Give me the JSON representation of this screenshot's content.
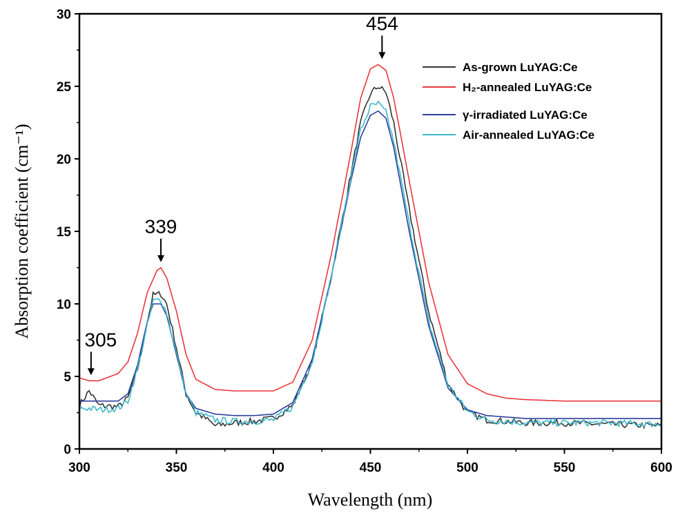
{
  "chart_data": {
    "type": "line",
    "title": "",
    "xlabel": "Wavelength (nm)",
    "ylabel": "Absorption coefficient (cm⁻¹)",
    "xlim": [
      300,
      600
    ],
    "ylim": [
      0,
      30
    ],
    "x_ticks": [
      300,
      350,
      400,
      450,
      500,
      550,
      600
    ],
    "y_ticks": [
      0,
      5,
      10,
      15,
      20,
      25,
      30
    ],
    "grid": false,
    "legend_position": "top-right",
    "series": [
      {
        "name": "As-grown LuYAG:Ce",
        "color": "#333333",
        "noisy": true,
        "x": [
          300,
          305,
          310,
          320,
          325,
          330,
          335,
          338,
          342,
          345,
          350,
          355,
          360,
          365,
          370,
          380,
          390,
          400,
          410,
          420,
          430,
          440,
          445,
          450,
          454,
          458,
          462,
          470,
          480,
          490,
          500,
          510,
          520,
          530,
          550,
          570,
          600
        ],
        "y": [
          3.0,
          4.0,
          3.0,
          2.9,
          3.5,
          5.5,
          8.8,
          10.6,
          10.7,
          10.0,
          7.0,
          3.8,
          2.5,
          2.1,
          1.6,
          1.8,
          1.9,
          2.1,
          3.0,
          6.0,
          12.0,
          19.0,
          22.5,
          24.5,
          25.0,
          24.6,
          22.5,
          16.5,
          9.5,
          4.5,
          2.5,
          2.0,
          1.9,
          1.8,
          1.8,
          1.7,
          1.6
        ]
      },
      {
        "name": "H₂-annealed LuYAG:Ce",
        "color": "#e8373c",
        "noisy": false,
        "x": [
          300,
          305,
          310,
          320,
          325,
          330,
          335,
          340,
          342,
          345,
          350,
          355,
          360,
          370,
          380,
          400,
          410,
          420,
          430,
          440,
          445,
          450,
          454,
          458,
          462,
          470,
          480,
          490,
          500,
          510,
          520,
          530,
          550,
          570,
          600
        ],
        "y": [
          4.9,
          4.7,
          4.7,
          5.2,
          6.0,
          8.0,
          10.8,
          12.3,
          12.5,
          11.8,
          9.5,
          6.5,
          4.8,
          4.1,
          4.0,
          4.0,
          4.6,
          7.5,
          13.5,
          20.5,
          24.2,
          26.2,
          26.5,
          26.1,
          24.2,
          18.5,
          11.5,
          6.5,
          4.5,
          3.8,
          3.5,
          3.4,
          3.3,
          3.3,
          3.3
        ]
      },
      {
        "name": "γ-irradiated LuYAG:Ce",
        "color": "#2b3e9e",
        "noisy": false,
        "x": [
          300,
          305,
          310,
          320,
          325,
          330,
          335,
          338,
          342,
          345,
          350,
          355,
          360,
          370,
          380,
          390,
          400,
          410,
          420,
          430,
          440,
          445,
          450,
          454,
          458,
          462,
          470,
          480,
          490,
          500,
          510,
          520,
          530,
          550,
          570,
          600
        ],
        "y": [
          3.3,
          3.3,
          3.3,
          3.3,
          3.8,
          5.8,
          8.8,
          10.0,
          10.0,
          9.2,
          6.5,
          3.8,
          2.8,
          2.4,
          2.3,
          2.3,
          2.4,
          3.2,
          6.2,
          12.0,
          18.5,
          21.5,
          23.0,
          23.3,
          22.8,
          20.8,
          15.0,
          8.5,
          4.2,
          2.7,
          2.3,
          2.2,
          2.1,
          2.1,
          2.1,
          2.1
        ]
      },
      {
        "name": "Air-annealed LuYAG:Ce",
        "color": "#3db8cc",
        "noisy": true,
        "x": [
          300,
          305,
          310,
          320,
          325,
          330,
          335,
          338,
          342,
          345,
          350,
          355,
          360,
          370,
          380,
          390,
          400,
          410,
          420,
          430,
          440,
          445,
          450,
          454,
          458,
          462,
          470,
          480,
          490,
          500,
          510,
          520,
          530,
          550,
          570,
          600
        ],
        "y": [
          2.8,
          2.8,
          2.7,
          2.8,
          3.3,
          5.5,
          8.5,
          10.2,
          10.3,
          9.4,
          6.6,
          3.8,
          2.5,
          2.0,
          1.9,
          1.9,
          2.0,
          2.9,
          6.0,
          12.0,
          18.8,
          22.0,
          23.6,
          23.8,
          23.2,
          21.2,
          15.5,
          8.8,
          4.4,
          2.6,
          2.0,
          1.9,
          1.8,
          1.8,
          1.8,
          1.7
        ]
      }
    ],
    "annotations": [
      {
        "text": "305",
        "x": 306,
        "y": 4.7
      },
      {
        "text": "339",
        "x": 342,
        "y": 12.5
      },
      {
        "text": "454",
        "x": 456,
        "y": 26.5
      }
    ]
  }
}
